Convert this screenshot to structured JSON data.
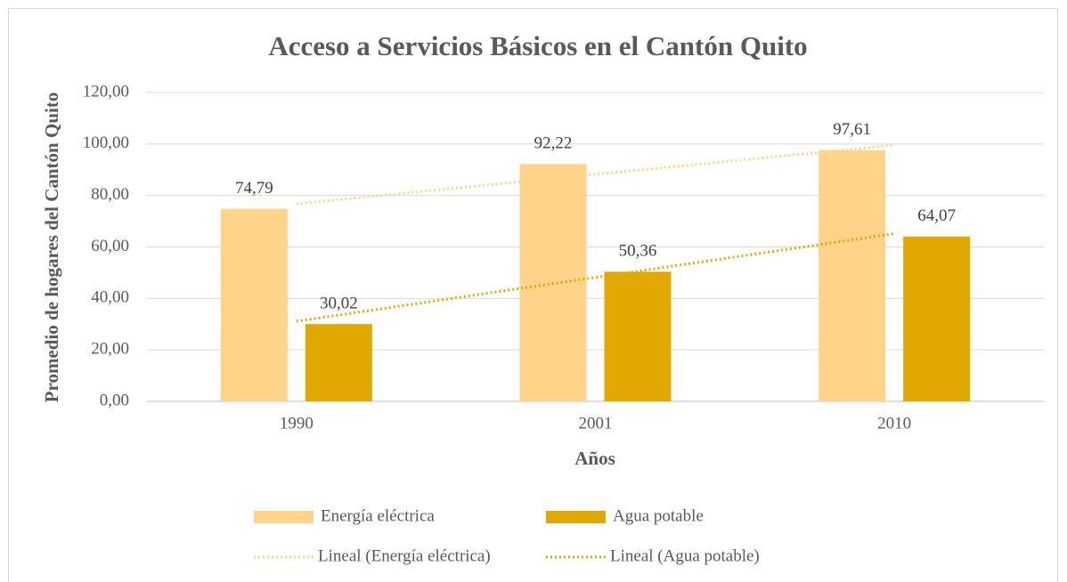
{
  "chart_data": {
    "type": "bar",
    "title": "Acceso a Servicios Básicos en el Cantón Quito",
    "x_label": "Años",
    "y_label": "Promedio de hogares del Cantón Quito",
    "categories": [
      "1990",
      "2001",
      "2010"
    ],
    "series": [
      {
        "name": "Energía eléctrica",
        "color": "#ffd38a",
        "values": [
          74.79,
          92.22,
          97.61
        ],
        "value_labels": [
          "74,79",
          "92,22",
          "97,61"
        ],
        "trendline": "Lineal (Energía eléctrica)"
      },
      {
        "name": "Agua potable",
        "color": "#e0a800",
        "values": [
          30.02,
          50.36,
          64.07
        ],
        "value_labels": [
          "30,02",
          "50,36",
          "64,07"
        ],
        "trendline": "Lineal (Agua potable)"
      }
    ],
    "ylim": [
      0,
      120
    ],
    "yticks": [
      {
        "value": 0,
        "label": "0,00"
      },
      {
        "value": 20,
        "label": "20,00"
      },
      {
        "value": 40,
        "label": "40,00"
      },
      {
        "value": 60,
        "label": "60,00"
      },
      {
        "value": 80,
        "label": "80,00"
      },
      {
        "value": 100,
        "label": "100,00"
      },
      {
        "value": 120,
        "label": "120,00"
      }
    ],
    "grid": true,
    "legend": "bottom"
  }
}
